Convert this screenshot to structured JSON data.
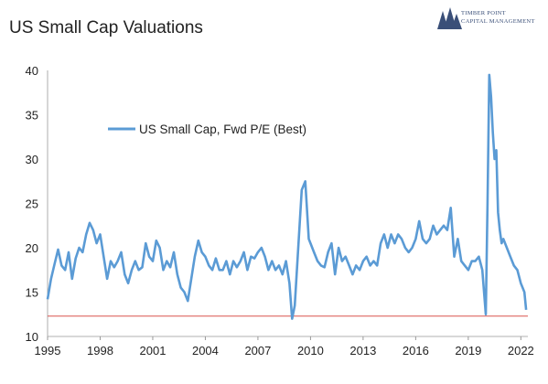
{
  "header": {
    "title": "US Small Cap Valuations",
    "logo_line1": "TIMBER POINT",
    "logo_line2": "CAPITAL MANAGEMENT"
  },
  "colors": {
    "series": "#5b9bd5",
    "reference_line": "#d9534f",
    "logo": "#3a4f78"
  },
  "chart_data": {
    "type": "line",
    "title": "US Small Cap Valuations",
    "xlabel": "",
    "ylabel": "",
    "xlim": [
      1995,
      2022.4
    ],
    "ylim": [
      10,
      40
    ],
    "x_ticks": [
      1995,
      1998,
      2001,
      2004,
      2007,
      2010,
      2013,
      2016,
      2019,
      2022
    ],
    "y_ticks": [
      10,
      15,
      20,
      25,
      30,
      35,
      40
    ],
    "legend": {
      "placement": "upper-left"
    },
    "grid": false,
    "reference_line": {
      "y": 12.3
    },
    "series": [
      {
        "name": "US Small Cap, Fwd P/E (Best)",
        "x": [
          1995.0,
          1995.2,
          1995.4,
          1995.6,
          1995.8,
          1996.0,
          1996.2,
          1996.4,
          1996.6,
          1996.8,
          1997.0,
          1997.2,
          1997.4,
          1997.6,
          1997.8,
          1998.0,
          1998.2,
          1998.4,
          1998.6,
          1998.8,
          1999.0,
          1999.2,
          1999.4,
          1999.6,
          1999.8,
          2000.0,
          2000.2,
          2000.4,
          2000.6,
          2000.8,
          2001.0,
          2001.2,
          2001.4,
          2001.6,
          2001.8,
          2002.0,
          2002.2,
          2002.4,
          2002.6,
          2002.8,
          2003.0,
          2003.2,
          2003.4,
          2003.6,
          2003.8,
          2004.0,
          2004.2,
          2004.4,
          2004.6,
          2004.8,
          2005.0,
          2005.2,
          2005.4,
          2005.6,
          2005.8,
          2006.0,
          2006.2,
          2006.4,
          2006.6,
          2006.8,
          2007.0,
          2007.2,
          2007.4,
          2007.6,
          2007.8,
          2008.0,
          2008.2,
          2008.4,
          2008.6,
          2008.8,
          2008.95,
          2009.1,
          2009.3,
          2009.5,
          2009.7,
          2009.9,
          2010.0,
          2010.2,
          2010.4,
          2010.6,
          2010.8,
          2011.0,
          2011.2,
          2011.4,
          2011.6,
          2011.8,
          2012.0,
          2012.2,
          2012.4,
          2012.6,
          2012.8,
          2013.0,
          2013.2,
          2013.4,
          2013.6,
          2013.8,
          2014.0,
          2014.2,
          2014.4,
          2014.6,
          2014.8,
          2015.0,
          2015.2,
          2015.4,
          2015.6,
          2015.8,
          2016.0,
          2016.2,
          2016.4,
          2016.6,
          2016.8,
          2017.0,
          2017.2,
          2017.4,
          2017.6,
          2017.8,
          2018.0,
          2018.2,
          2018.4,
          2018.6,
          2018.8,
          2019.0,
          2019.2,
          2019.4,
          2019.6,
          2019.8,
          2020.0,
          2020.1,
          2020.2,
          2020.3,
          2020.4,
          2020.5,
          2020.6,
          2020.7,
          2020.8,
          2020.9,
          2021.0,
          2021.2,
          2021.4,
          2021.6,
          2021.8,
          2022.0,
          2022.2,
          2022.3
        ],
        "values": [
          14.2,
          16.5,
          18.2,
          19.8,
          18.0,
          17.5,
          19.5,
          16.5,
          18.8,
          20.0,
          19.5,
          21.5,
          22.8,
          22.0,
          20.5,
          21.5,
          19.0,
          16.5,
          18.5,
          17.8,
          18.5,
          19.5,
          17.0,
          16.0,
          17.5,
          18.5,
          17.5,
          17.8,
          20.5,
          19.0,
          18.5,
          20.8,
          20.0,
          17.5,
          18.5,
          17.8,
          19.5,
          17.0,
          15.5,
          15.0,
          14.0,
          16.5,
          19.0,
          20.8,
          19.5,
          19.0,
          18.0,
          17.5,
          18.8,
          17.5,
          17.5,
          18.5,
          17.0,
          18.5,
          17.8,
          18.5,
          19.5,
          17.5,
          19.0,
          18.8,
          19.5,
          20.0,
          19.0,
          17.5,
          18.5,
          17.5,
          18.0,
          17.0,
          18.5,
          16.0,
          12.0,
          13.5,
          20.0,
          26.5,
          27.5,
          21.0,
          20.5,
          19.5,
          18.5,
          18.0,
          17.8,
          19.5,
          20.5,
          17.0,
          20.0,
          18.5,
          19.0,
          18.0,
          17.0,
          18.0,
          17.5,
          18.5,
          19.0,
          18.0,
          18.5,
          18.0,
          20.5,
          21.5,
          20.0,
          21.5,
          20.5,
          21.5,
          21.0,
          20.0,
          19.5,
          20.0,
          21.0,
          23.0,
          21.0,
          20.5,
          21.0,
          22.5,
          21.5,
          22.0,
          22.5,
          22.0,
          24.5,
          19.0,
          21.0,
          18.5,
          18.0,
          17.5,
          18.5,
          18.5,
          19.0,
          17.5,
          12.5,
          25.0,
          39.5,
          37.0,
          33.0,
          30.0,
          31.0,
          24.0,
          22.0,
          20.5,
          21.0,
          20.0,
          19.0,
          18.0,
          17.5,
          16.0,
          15.0,
          13.0
        ]
      }
    ]
  }
}
